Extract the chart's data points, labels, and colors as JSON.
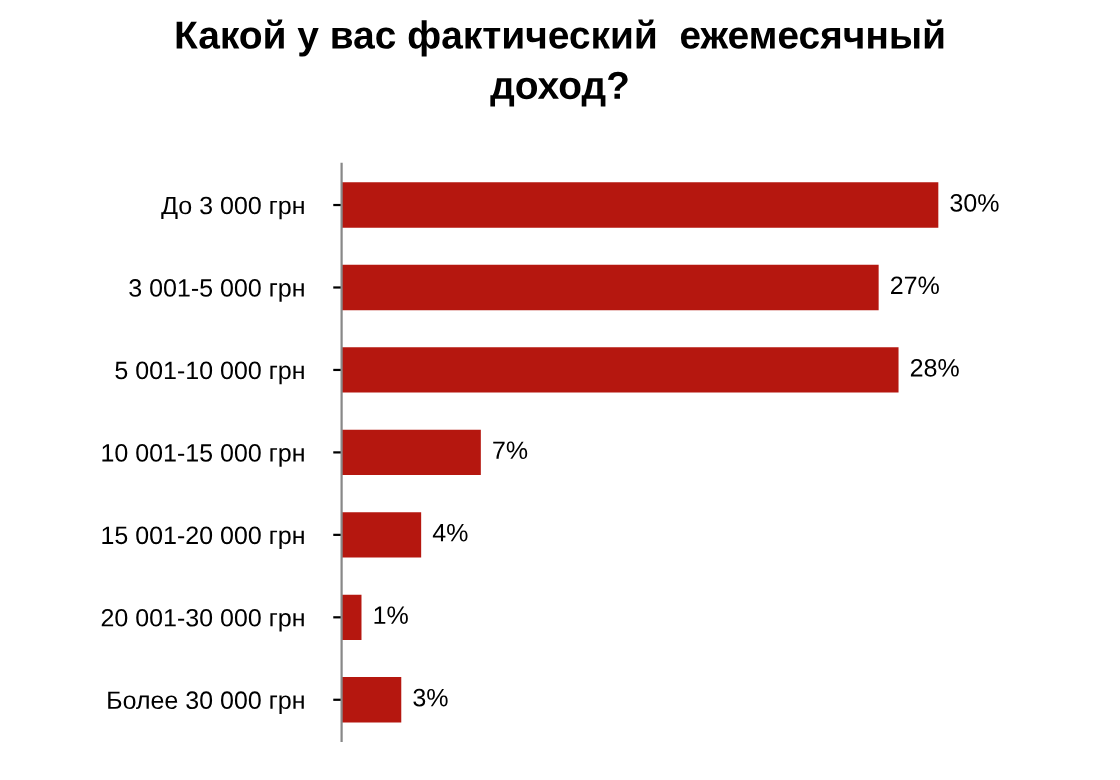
{
  "chart_data": {
    "type": "bar",
    "orientation": "horizontal",
    "title": "Какой у вас фактический  ежемесячный\nдоход?",
    "categories": [
      "До 3 000 грн",
      "3 001-5 000 грн",
      "5 001-10 000 грн",
      "10 001-15 000 грн",
      "15 001-20 000 грн",
      "20 001-30 000 грн",
      "Более 30 000 грн"
    ],
    "values": [
      30,
      27,
      28,
      7,
      4,
      1,
      3
    ],
    "value_labels": [
      "30%",
      "27%",
      "28%",
      "7%",
      "4%",
      "1%",
      "3%"
    ],
    "color": "#b5170f",
    "grid": false,
    "legend": false
  }
}
